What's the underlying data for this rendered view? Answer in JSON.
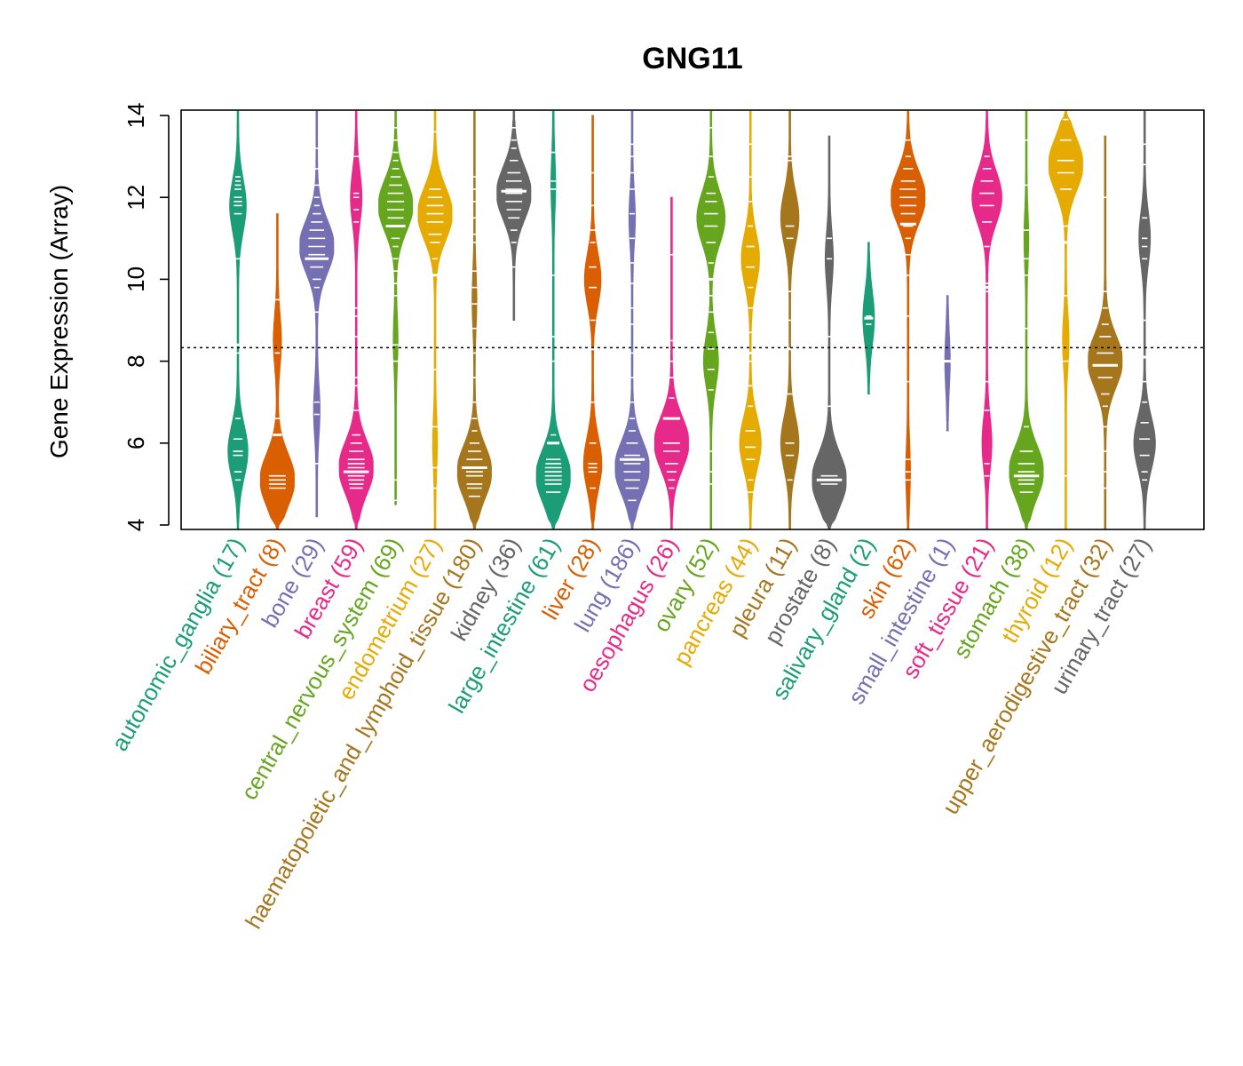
{
  "chart_data": {
    "type": "violin",
    "title": "GNG11",
    "ylabel": "Gene Expression (Array)",
    "xlabel": "",
    "ylim": [
      4,
      14
    ],
    "yticks": [
      4,
      6,
      8,
      10,
      12,
      14
    ],
    "reference_line": 8.33,
    "reference_line_style": "dotted",
    "categories": [
      {
        "label": "autonomic_ganglia (17)",
        "color": "#1b9e77",
        "min": 3.9,
        "max": 14.1,
        "median": 8.4,
        "modes": [
          {
            "y": 5.8,
            "w": 0.55
          },
          {
            "y": 11.8,
            "w": 0.45
          }
        ],
        "values": [
          5.1,
          5.3,
          5.7,
          5.8,
          6.1,
          6.6,
          8.2,
          8.4,
          10.5,
          11.6,
          11.8,
          12.0,
          12.2,
          12.3,
          12.4,
          12.5,
          11.9
        ]
      },
      {
        "label": "biliary_tract (8)",
        "color": "#d95f02",
        "min": 3.9,
        "max": 11.6,
        "median": 6.2,
        "modes": [
          {
            "y": 5.1,
            "w": 1.0
          },
          {
            "y": 8.5,
            "w": 0.2
          }
        ],
        "values": [
          4.9,
          5.0,
          5.1,
          5.2,
          6.2,
          6.6,
          8.2,
          9.5
        ]
      },
      {
        "label": "bone (29)",
        "color": "#7570b3",
        "min": 4.2,
        "max": 14.1,
        "median": 10.5,
        "modes": [
          {
            "y": 10.8,
            "w": 1.0
          },
          {
            "y": 6.8,
            "w": 0.15
          }
        ],
        "values": [
          5.5,
          6.7,
          7.0,
          9.2,
          9.8,
          10.0,
          10.3,
          10.5,
          10.6,
          10.8,
          11.0,
          11.2,
          11.4,
          11.6,
          11.8,
          12.0,
          12.3,
          12.7,
          13.2
        ]
      },
      {
        "label": "breast (59)",
        "color": "#e7298a",
        "min": 3.9,
        "max": 14.1,
        "median": 5.3,
        "modes": [
          {
            "y": 5.4,
            "w": 1.0
          },
          {
            "y": 12.0,
            "w": 0.3
          }
        ],
        "values": [
          4.9,
          5.0,
          5.1,
          5.2,
          5.3,
          5.4,
          5.5,
          5.6,
          5.8,
          6.0,
          6.2,
          6.8,
          7.4,
          7.6,
          8.6,
          9.1,
          9.3,
          11.4,
          11.7,
          12.0,
          12.1,
          13.0
        ]
      },
      {
        "label": "central_nervous_system (69)",
        "color": "#66a61e",
        "min": 4.5,
        "max": 14.1,
        "median": 11.3,
        "modes": [
          {
            "y": 11.8,
            "w": 1.0
          },
          {
            "y": 8.5,
            "w": 0.1
          }
        ],
        "values": [
          4.6,
          5.1,
          8.0,
          8.4,
          9.6,
          9.9,
          10.2,
          10.5,
          10.8,
          11.0,
          11.3,
          11.5,
          11.7,
          11.9,
          12.1,
          12.3,
          12.5,
          12.7,
          12.9,
          13.1,
          13.4,
          13.7
        ]
      },
      {
        "label": "endometrium (27)",
        "color": "#e6ab02",
        "min": 3.9,
        "max": 14.1,
        "median": 10.1,
        "modes": [
          {
            "y": 11.6,
            "w": 1.0
          },
          {
            "y": 6.0,
            "w": 0.1
          }
        ],
        "values": [
          4.9,
          5.4,
          6.4,
          7.8,
          10.1,
          10.5,
          10.9,
          11.1,
          11.4,
          11.6,
          11.8,
          12.0,
          12.2,
          13.6
        ]
      },
      {
        "label": "haematopoietic_and_lymphoid_tissue (180)",
        "color": "#a6761d",
        "min": 3.9,
        "max": 14.1,
        "median": 5.4,
        "modes": [
          {
            "y": 5.3,
            "w": 1.0
          },
          {
            "y": 9.5,
            "w": 0.1
          }
        ],
        "values": [
          4.7,
          4.9,
          5.0,
          5.2,
          5.3,
          5.4,
          5.6,
          5.8,
          6.0,
          6.3,
          6.6,
          7.0,
          7.6,
          8.2,
          8.8,
          9.4,
          9.8,
          10.2,
          10.9,
          11.1,
          11.5,
          11.9,
          12.2,
          12.5
        ]
      },
      {
        "label": "kidney (36)",
        "color": "#666666",
        "min": 9.0,
        "max": 14.1,
        "median": 12.15,
        "modes": [
          {
            "y": 12.1,
            "w": 1.0
          }
        ],
        "values": [
          10.3,
          10.9,
          11.2,
          11.5,
          11.7,
          11.9,
          12.1,
          12.2,
          12.4,
          12.6,
          12.9,
          13.2,
          13.4,
          13.7
        ]
      },
      {
        "label": "large_intestine (61)",
        "color": "#1b9e77",
        "min": 3.9,
        "max": 14.1,
        "median": 6.0,
        "modes": [
          {
            "y": 5.2,
            "w": 1.0
          },
          {
            "y": 12.3,
            "w": 0.1
          }
        ],
        "values": [
          4.8,
          5.0,
          5.1,
          5.2,
          5.3,
          5.4,
          5.5,
          5.6,
          6.0,
          6.2,
          8.0,
          8.6,
          10.1,
          12.2,
          12.4,
          13.1
        ]
      },
      {
        "label": "liver (28)",
        "color": "#d95f02",
        "min": 3.9,
        "max": 14.0,
        "median": 8.3,
        "modes": [
          {
            "y": 10.0,
            "w": 0.45
          },
          {
            "y": 5.5,
            "w": 0.5
          }
        ],
        "values": [
          4.9,
          5.3,
          5.4,
          5.5,
          6.0,
          7.0,
          9.0,
          9.8,
          10.3,
          10.9,
          11.2,
          11.8,
          12.6
        ]
      },
      {
        "label": "lung (186)",
        "color": "#7570b3",
        "min": 3.9,
        "max": 14.1,
        "median": 5.6,
        "modes": [
          {
            "y": 5.4,
            "w": 1.0
          },
          {
            "y": 11.5,
            "w": 0.15
          }
        ],
        "values": [
          4.6,
          4.9,
          5.1,
          5.3,
          5.5,
          5.7,
          6.0,
          6.3,
          6.6,
          7.0,
          7.6,
          8.2,
          8.9,
          9.3,
          9.9,
          10.4,
          11.0,
          11.6,
          12.2,
          12.6,
          13.0,
          13.3
        ]
      },
      {
        "label": "oesophagus (26)",
        "color": "#e7298a",
        "min": 3.9,
        "max": 12.0,
        "median": 6.6,
        "modes": [
          {
            "y": 6.0,
            "w": 1.0
          }
        ],
        "values": [
          4.9,
          5.1,
          5.3,
          5.5,
          5.8,
          6.0,
          6.6,
          7.1,
          7.6,
          8.0,
          8.5,
          10.6
        ]
      },
      {
        "label": "ovary (52)",
        "color": "#66a61e",
        "min": 3.9,
        "max": 14.1,
        "median": 10.0,
        "modes": [
          {
            "y": 11.5,
            "w": 0.8
          },
          {
            "y": 8.0,
            "w": 0.4
          }
        ],
        "values": [
          5.0,
          5.3,
          5.8,
          7.3,
          7.8,
          8.3,
          8.7,
          9.2,
          9.6,
          10.0,
          10.4,
          10.9,
          11.3,
          11.6,
          11.9,
          12.1,
          12.5,
          13.0,
          13.7
        ]
      },
      {
        "label": "pancreas (44)",
        "color": "#e6ab02",
        "min": 3.9,
        "max": 14.1,
        "median": 8.2,
        "modes": [
          {
            "y": 6.0,
            "w": 0.6
          },
          {
            "y": 10.5,
            "w": 0.5
          }
        ],
        "values": [
          4.8,
          5.1,
          5.6,
          5.9,
          6.3,
          6.9,
          7.4,
          8.0,
          8.2,
          8.7,
          9.3,
          9.8,
          10.3,
          10.8,
          11.3,
          11.9,
          12.5,
          13.3
        ]
      },
      {
        "label": "pleura (11)",
        "color": "#a6761d",
        "min": 3.9,
        "max": 14.1,
        "median": 8.3,
        "modes": [
          {
            "y": 6.0,
            "w": 0.5
          },
          {
            "y": 11.5,
            "w": 0.5
          }
        ],
        "values": [
          5.1,
          5.7,
          6.0,
          7.2,
          9.0,
          9.7,
          11.0,
          11.3,
          12.9,
          13.0
        ]
      },
      {
        "label": "prostate (8)",
        "color": "#666666",
        "min": 3.9,
        "max": 13.5,
        "median": 5.1,
        "modes": [
          {
            "y": 5.1,
            "w": 1.0
          },
          {
            "y": 10.5,
            "w": 0.2
          }
        ],
        "values": [
          5.0,
          5.1,
          5.2,
          6.9,
          8.6,
          10.5,
          11.0
        ]
      },
      {
        "label": "salivary_gland (2)",
        "color": "#1b9e77",
        "min": 7.2,
        "max": 10.9,
        "median": 9.05,
        "modes": [
          {
            "y": 9.05,
            "w": 0.3
          }
        ],
        "values": [
          8.9,
          9.1
        ]
      },
      {
        "label": "skin (62)",
        "color": "#d95f02",
        "min": 3.9,
        "max": 14.1,
        "median": 11.35,
        "modes": [
          {
            "y": 12.0,
            "w": 1.0
          },
          {
            "y": 5.3,
            "w": 0.1
          }
        ],
        "values": [
          5.1,
          5.3,
          5.6,
          7.5,
          9.1,
          10.1,
          10.6,
          11.0,
          11.3,
          11.6,
          11.8,
          12.0,
          12.2,
          12.4,
          12.7,
          13.0,
          13.4
        ]
      },
      {
        "label": "small_intestine (1)",
        "color": "#7570b3",
        "min": 6.3,
        "max": 9.6,
        "median": 8.0,
        "modes": [
          {
            "y": 8.0,
            "w": 0.12
          }
        ],
        "values": [
          8.0
        ]
      },
      {
        "label": "soft_tissue (21)",
        "color": "#e7298a",
        "min": 3.9,
        "max": 14.1,
        "median": 9.8,
        "modes": [
          {
            "y": 12.0,
            "w": 0.85
          },
          {
            "y": 6.0,
            "w": 0.25
          }
        ],
        "values": [
          5.2,
          5.5,
          6.8,
          7.5,
          9.7,
          9.9,
          10.8,
          11.4,
          11.8,
          12.1,
          12.4,
          12.7,
          13.0
        ]
      },
      {
        "label": "stomach (38)",
        "color": "#66a61e",
        "min": 3.9,
        "max": 14.1,
        "median": 5.2,
        "modes": [
          {
            "y": 5.3,
            "w": 1.0
          },
          {
            "y": 11.0,
            "w": 0.1
          }
        ],
        "values": [
          4.8,
          5.0,
          5.1,
          5.2,
          5.3,
          5.5,
          5.8,
          6.4,
          8.8,
          10.1,
          10.5,
          11.2,
          12.3,
          13.4
        ]
      },
      {
        "label": "thyroid (12)",
        "color": "#e6ab02",
        "min": 3.9,
        "max": 14.1,
        "median": 10.9,
        "modes": [
          {
            "y": 12.8,
            "w": 1.0
          },
          {
            "y": 8.5,
            "w": 0.15
          }
        ],
        "values": [
          5.2,
          8.0,
          9.6,
          10.9,
          11.3,
          12.2,
          12.6,
          12.9,
          13.4,
          13.9
        ]
      },
      {
        "label": "upper_aerodigestive_tract (32)",
        "color": "#a6761d",
        "min": 3.9,
        "max": 13.5,
        "median": 7.9,
        "modes": [
          {
            "y": 8.0,
            "w": 1.0
          }
        ],
        "values": [
          4.9,
          5.3,
          5.8,
          6.4,
          6.9,
          7.2,
          7.6,
          7.9,
          8.2,
          8.6,
          8.9,
          9.3,
          9.7,
          12.0
        ]
      },
      {
        "label": "urinary_tract (27)",
        "color": "#666666",
        "min": 3.9,
        "max": 14.1,
        "median": 8.1,
        "modes": [
          {
            "y": 6.0,
            "w": 0.6
          },
          {
            "y": 11.0,
            "w": 0.3
          }
        ],
        "values": [
          5.1,
          5.3,
          5.7,
          6.1,
          6.5,
          7.0,
          7.5,
          8.1,
          9.0,
          10.5,
          10.8,
          11.0,
          11.5,
          12.8,
          13.3
        ]
      }
    ]
  }
}
